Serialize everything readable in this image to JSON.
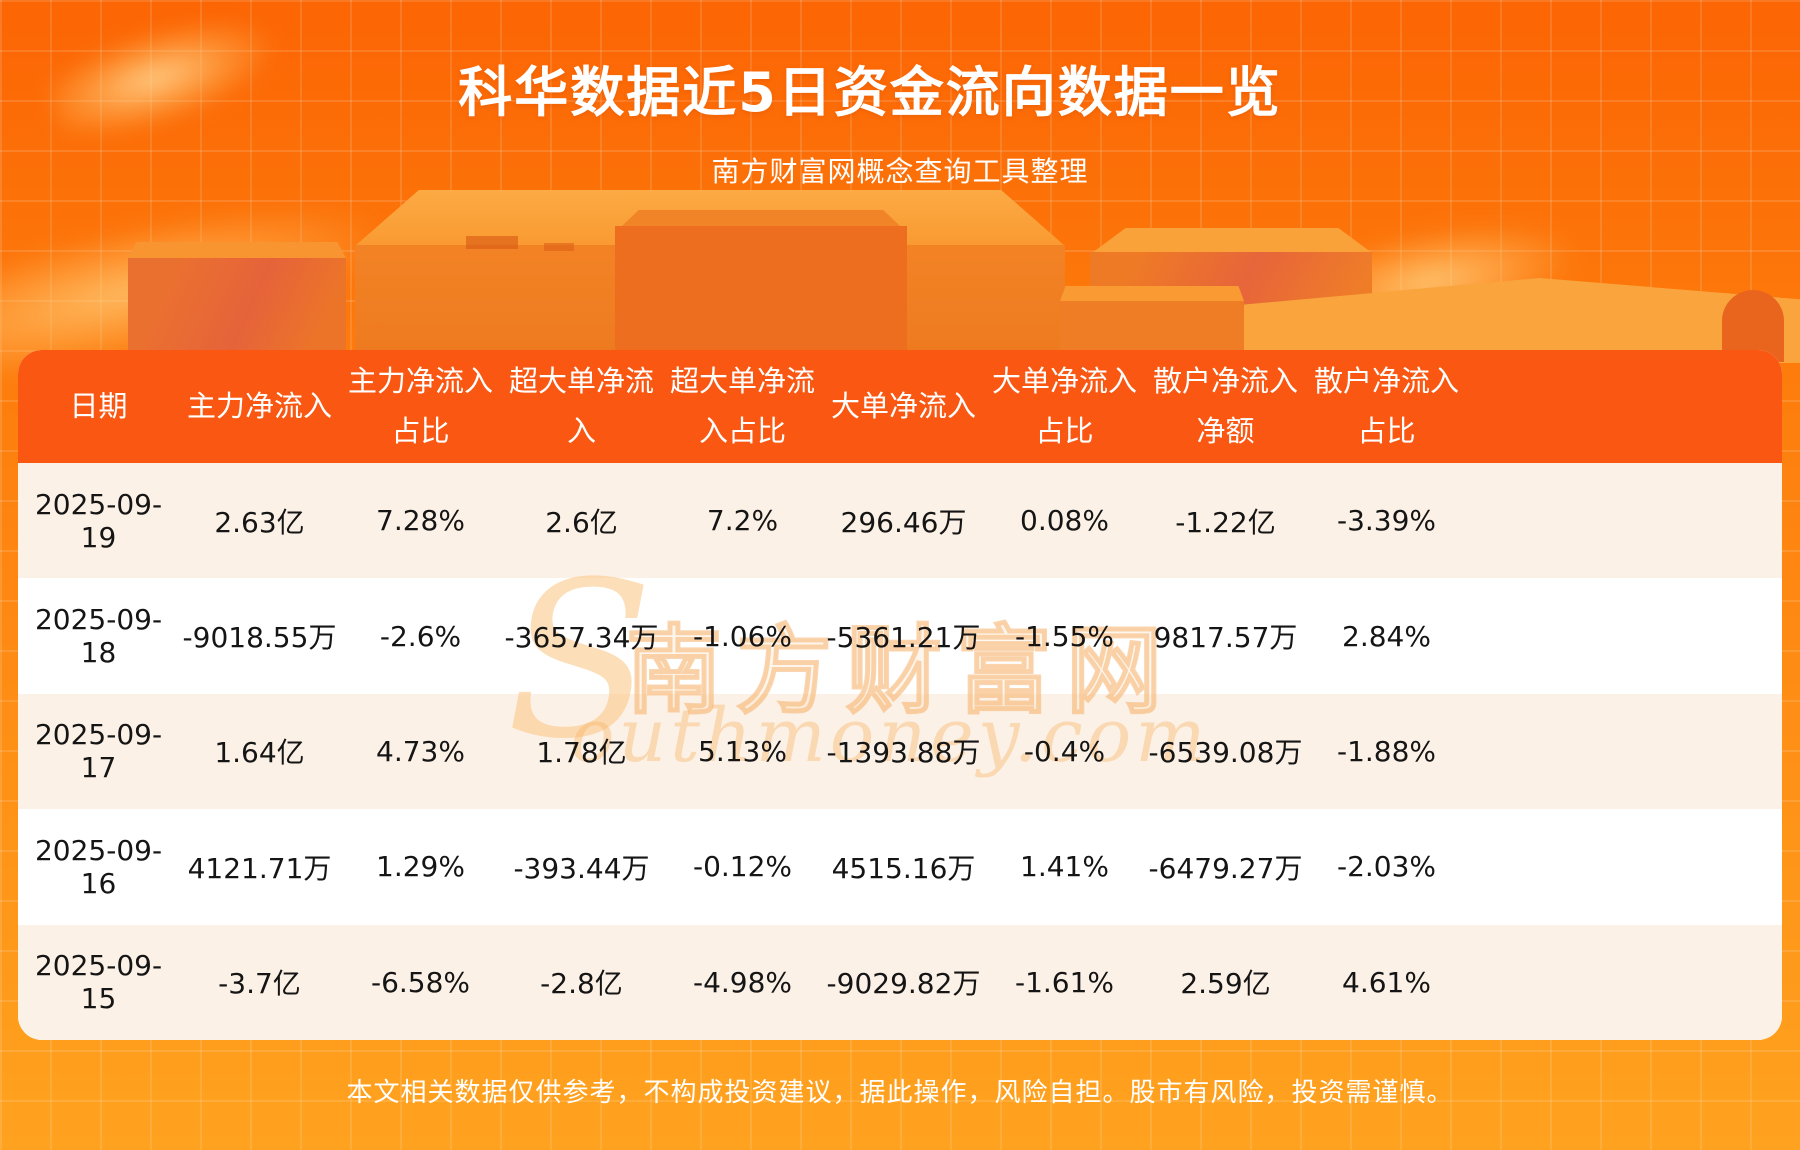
{
  "page": {
    "title": "科华数据近5日资金流向数据一览",
    "subtitle": "南方财富网概念查询工具整理",
    "footer": "本文相关数据仅供参考，不构成投资建议，据此操作，风险自担。股市有风险，投资需谨慎。"
  },
  "watermark": {
    "initial": "S",
    "cjk": "南方财富网",
    "latin": "outhmoney.com"
  },
  "colors": {
    "background_top": "#fc6504",
    "background_bottom": "#ffa21f",
    "header_bg": "#fa5712",
    "row_alt_bg": "#fcf1e6",
    "row_bg": "#ffffff",
    "text_dark": "#151515",
    "text_light": "#ffffff"
  },
  "table": {
    "columns": [
      {
        "line1": "日期",
        "line2": ""
      },
      {
        "line1": "主力净流入",
        "line2": ""
      },
      {
        "line1": "主力净流入",
        "line2": "占比"
      },
      {
        "line1": "超大单净流",
        "line2": "入"
      },
      {
        "line1": "超大单净流",
        "line2": "入占比"
      },
      {
        "line1": "大单净流入",
        "line2": ""
      },
      {
        "line1": "大单净流入",
        "line2": "占比"
      },
      {
        "line1": "散户净流入",
        "line2": "净额"
      },
      {
        "line1": "散户净流入",
        "line2": "占比"
      }
    ],
    "rows": [
      [
        "2025-09-19",
        "2.63亿",
        "7.28%",
        "2.6亿",
        "7.2%",
        "296.46万",
        "0.08%",
        "-1.22亿",
        "-3.39%"
      ],
      [
        "2025-09-18",
        "-9018.55万",
        "-2.6%",
        "-3657.34万",
        "-1.06%",
        "-5361.21万",
        "-1.55%",
        "9817.57万",
        "2.84%"
      ],
      [
        "2025-09-17",
        "1.64亿",
        "4.73%",
        "1.78亿",
        "5.13%",
        "-1393.88万",
        "-0.4%",
        "-6539.08万",
        "-1.88%"
      ],
      [
        "2025-09-16",
        "4121.71万",
        "1.29%",
        "-393.44万",
        "-0.12%",
        "4515.16万",
        "1.41%",
        "-6479.27万",
        "-2.03%"
      ],
      [
        "2025-09-15",
        "-3.7亿",
        "-6.58%",
        "-2.8亿",
        "-4.98%",
        "-9029.82万",
        "-1.61%",
        "2.59亿",
        "4.61%"
      ]
    ]
  },
  "chart_data": {
    "type": "table",
    "title": "科华数据近5日资金流向数据一览",
    "columns": [
      "日期",
      "主力净流入",
      "主力净流入占比",
      "超大单净流入",
      "超大单净流入占比",
      "大单净流入",
      "大单净流入占比",
      "散户净流入净额",
      "散户净流入占比"
    ],
    "rows": [
      [
        "2025-09-19",
        "2.63亿",
        "7.28%",
        "2.6亿",
        "7.2%",
        "296.46万",
        "0.08%",
        "-1.22亿",
        "-3.39%"
      ],
      [
        "2025-09-18",
        "-9018.55万",
        "-2.6%",
        "-3657.34万",
        "-1.06%",
        "-5361.21万",
        "-1.55%",
        "9817.57万",
        "2.84%"
      ],
      [
        "2025-09-17",
        "1.64亿",
        "4.73%",
        "1.78亿",
        "5.13%",
        "-1393.88万",
        "-0.4%",
        "-6539.08万",
        "-1.88%"
      ],
      [
        "2025-09-16",
        "4121.71万",
        "1.29%",
        "-393.44万",
        "-0.12%",
        "4515.16万",
        "1.41%",
        "-6479.27万",
        "-2.03%"
      ],
      [
        "2025-09-15",
        "-3.7亿",
        "-6.58%",
        "-2.8亿",
        "-4.98%",
        "-9029.82万",
        "-1.61%",
        "2.59亿",
        "4.61%"
      ]
    ]
  }
}
